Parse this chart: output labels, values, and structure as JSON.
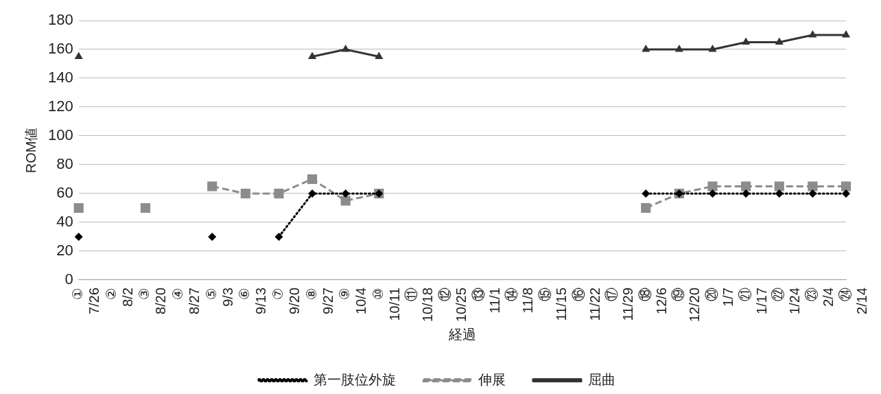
{
  "chart_data": {
    "type": "line",
    "xlabel": "経過",
    "ylabel": "ROM値",
    "categories": [
      "① 7/26",
      "② 8/2",
      "③ 8/20",
      "④ 8/27",
      "⑤ 9/3",
      "⑥ 9/13",
      "⑦ 9/20",
      "⑧ 9/27",
      "⑨ 10/4",
      "⑩ 10/11",
      "⑪ 10/18",
      "⑫ 10/25",
      "⑬ 11/1",
      "⑭ 11/8",
      "⑮ 11/15",
      "⑯ 11/22",
      "⑰ 11/29",
      "⑱ 12/6",
      "⑲ 12/20",
      "⑳ 1/7",
      "㉑ 1/17",
      "㉒ 1/24",
      "㉓ 2/4",
      "㉔ 2/14"
    ],
    "series": [
      {
        "name": "第一肢位外旋",
        "color": "#000000",
        "marker": "diamond",
        "line_style": "dotted",
        "values": [
          30,
          null,
          null,
          null,
          30,
          null,
          30,
          60,
          60,
          60,
          null,
          null,
          null,
          null,
          null,
          null,
          null,
          60,
          60,
          60,
          60,
          60,
          60,
          60
        ]
      },
      {
        "name": "伸展",
        "color": "#8c8c8c",
        "marker": "square",
        "line_style": "dashed",
        "values": [
          50,
          null,
          50,
          null,
          65,
          60,
          60,
          70,
          55,
          60,
          null,
          null,
          null,
          null,
          null,
          null,
          null,
          50,
          60,
          65,
          65,
          65,
          65,
          65
        ]
      },
      {
        "name": "屈曲",
        "color": "#333333",
        "marker": "triangle",
        "line_style": "solid",
        "values": [
          155,
          null,
          null,
          null,
          null,
          null,
          null,
          155,
          160,
          155,
          null,
          null,
          null,
          null,
          null,
          null,
          null,
          160,
          160,
          160,
          165,
          165,
          170,
          170
        ]
      }
    ],
    "ylim": [
      0,
      180
    ],
    "yticks": [
      0,
      20,
      40,
      60,
      80,
      100,
      120,
      140,
      160,
      180
    ],
    "grid": "y",
    "legend": "bottom"
  }
}
